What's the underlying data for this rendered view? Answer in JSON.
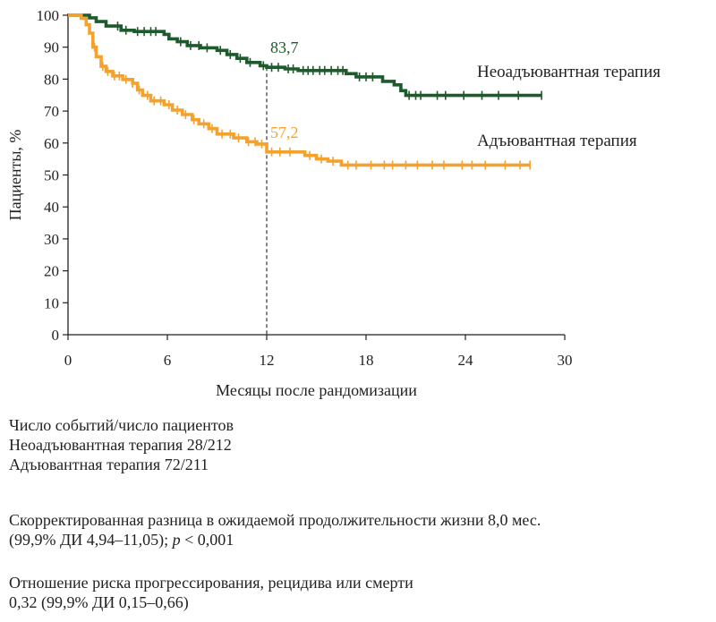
{
  "chart_data": {
    "type": "line",
    "subtype": "kaplan-meier",
    "xlabel": "Месяцы после рандомизации",
    "ylabel": "Пациенты, %",
    "xlim": [
      0,
      30
    ],
    "ylim": [
      0,
      100
    ],
    "xticks": [
      0,
      6,
      12,
      18,
      24,
      30
    ],
    "yticks": [
      0,
      10,
      20,
      30,
      40,
      50,
      60,
      70,
      80,
      90,
      100
    ],
    "grid": false,
    "legend_placement": "right, next to curves",
    "series": [
      {
        "name": "Неоадъювантная терапия",
        "color": "#1e5b2c",
        "steps": [
          [
            0,
            100
          ],
          [
            1.3,
            99.2
          ],
          [
            1.7,
            98
          ],
          [
            2.3,
            96.6
          ],
          [
            3.2,
            95.3
          ],
          [
            4.0,
            94.9
          ],
          [
            5.8,
            94
          ],
          [
            6.1,
            92.6
          ],
          [
            6.6,
            91.7
          ],
          [
            7.2,
            90.5
          ],
          [
            8.0,
            89.8
          ],
          [
            9.0,
            89
          ],
          [
            9.6,
            87.7
          ],
          [
            10.2,
            86.5
          ],
          [
            10.8,
            85.2
          ],
          [
            11.6,
            84.2
          ],
          [
            12.0,
            83.7
          ],
          [
            13.1,
            83.2
          ],
          [
            13.9,
            82.7
          ],
          [
            16.8,
            81.7
          ],
          [
            17.4,
            80.7
          ],
          [
            19.0,
            79.3
          ],
          [
            19.7,
            78.2
          ],
          [
            20.1,
            76.4
          ],
          [
            20.4,
            74.9
          ],
          [
            28.6,
            74.9
          ]
        ],
        "censor_x": [
          3.0,
          3.5,
          4.2,
          4.6,
          5.0,
          5.3,
          6.8,
          7.4,
          7.9,
          8.4,
          9.2,
          9.8,
          10.4,
          11.0,
          11.8,
          12.3,
          12.7,
          13.3,
          13.6,
          14.2,
          14.5,
          14.8,
          15.2,
          15.5,
          15.9,
          16.3,
          16.6,
          17.6,
          18.0,
          18.4,
          20.6,
          21.0,
          21.3,
          22.3,
          22.8,
          23.9,
          25.0,
          26.0,
          27.2,
          28.6
        ]
      },
      {
        "name": "Адъювантная терапия",
        "color": "#f4a22d",
        "steps": [
          [
            0,
            100
          ],
          [
            0.8,
            99
          ],
          [
            1.1,
            97
          ],
          [
            1.3,
            94.4
          ],
          [
            1.5,
            90
          ],
          [
            1.7,
            87
          ],
          [
            2.0,
            84
          ],
          [
            2.3,
            82.4
          ],
          [
            2.7,
            81
          ],
          [
            3.3,
            79.9
          ],
          [
            3.9,
            78.7
          ],
          [
            4.2,
            76.6
          ],
          [
            4.5,
            74.9
          ],
          [
            5.0,
            73.2
          ],
          [
            5.8,
            72
          ],
          [
            6.3,
            70.3
          ],
          [
            6.9,
            68.9
          ],
          [
            7.5,
            67.3
          ],
          [
            7.9,
            66
          ],
          [
            8.5,
            64.5
          ],
          [
            9.0,
            62.8
          ],
          [
            10.0,
            61.6
          ],
          [
            10.8,
            60.4
          ],
          [
            11.4,
            59.7
          ],
          [
            12.0,
            57.2
          ],
          [
            14.3,
            56.1
          ],
          [
            15.0,
            55
          ],
          [
            15.7,
            54.3
          ],
          [
            16.5,
            53.1
          ],
          [
            27.9,
            53.1
          ]
        ],
        "censor_x": [
          1.6,
          2.1,
          2.4,
          2.8,
          3.1,
          3.5,
          3.9,
          4.3,
          4.8,
          5.2,
          5.6,
          6.1,
          6.6,
          7.1,
          7.6,
          8.2,
          8.7,
          9.3,
          9.8,
          10.3,
          10.9,
          11.3,
          11.7,
          12.3,
          12.8,
          13.4,
          14.6,
          15.3,
          16.0,
          16.9,
          17.4,
          18.3,
          19.1,
          19.6,
          20.4,
          21.1,
          22.0,
          22.7,
          23.8,
          24.4,
          25.2,
          26.4,
          27.3,
          27.9
        ]
      }
    ],
    "annotations": [
      {
        "text": "83,7",
        "series": "Неоадъювантная терапия",
        "x": 12,
        "y": 83.7
      },
      {
        "text": "57,2",
        "series": "Адъювантная терапия",
        "x": 12,
        "y": 57.2
      }
    ],
    "reference_line": {
      "x": 12,
      "style": "dashed"
    }
  },
  "notes": {
    "events_title": "Число событий/число пациентов",
    "events_neo": "Неоадъювантная терапия 28/212",
    "events_adj": "Адъювантная терапия 72/211",
    "diff_line1": "Скорректированная разница в ожидаемой продолжительности жизни 8,0 мес.",
    "diff_line2_pre": "(99,9% ДИ 4,94–11,05); ",
    "diff_line2_p": "p",
    "diff_line2_post": " < 0,001",
    "hr_line1": "Отношение риска прогрессирования, рецидива или смерти",
    "hr_line2": "0,32 (99,9% ДИ 0,15–0,66)"
  }
}
